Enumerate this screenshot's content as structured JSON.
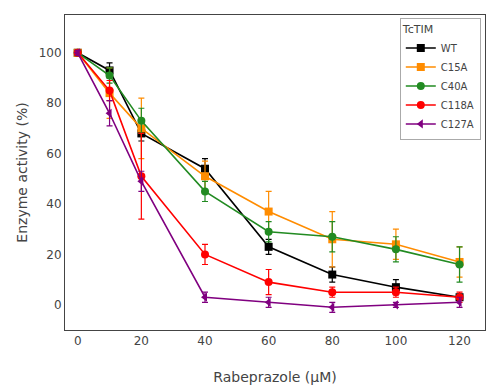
{
  "chart_data": {
    "type": "line",
    "x": [
      0,
      10,
      20,
      40,
      60,
      80,
      100,
      120
    ],
    "series": [
      {
        "name": "WT",
        "color": "#000000",
        "marker": "square",
        "line_style": "solid",
        "values": [
          100,
          93,
          68,
          54,
          23,
          12,
          7,
          3
        ],
        "errors": [
          1,
          3,
          3,
          4,
          3,
          3,
          3,
          1
        ]
      },
      {
        "name": "C15A",
        "color": "#FF8C00",
        "marker": "square",
        "line_style": "solid",
        "values": [
          100,
          84,
          70,
          51,
          37,
          26,
          24,
          17
        ],
        "errors": [
          1,
          10,
          12,
          6,
          8,
          11,
          6,
          6
        ]
      },
      {
        "name": "C40A",
        "color": "#228B22",
        "marker": "circle",
        "line_style": "solid",
        "values": [
          100,
          91,
          73,
          45,
          29,
          27,
          22,
          16
        ],
        "errors": [
          1,
          3,
          5,
          4,
          4,
          6,
          5,
          7
        ]
      },
      {
        "name": "C118A",
        "color": "#FF0000",
        "marker": "circle",
        "line_style": "solid",
        "values": [
          100,
          85,
          51,
          20,
          9,
          5,
          5,
          3
        ],
        "errors": [
          1,
          4,
          17,
          4,
          5,
          2,
          2,
          2
        ]
      },
      {
        "name": "C127A",
        "color": "#800080",
        "marker": "triangle-left",
        "line_style": "solid",
        "values": [
          100,
          76,
          49,
          3,
          1,
          -1,
          0,
          1
        ],
        "errors": [
          1,
          5,
          4,
          2,
          2,
          2,
          1,
          2
        ]
      }
    ],
    "xlabel": "Rabeprazole (μM)",
    "ylabel": "Enzyme activity (%)",
    "legend_title": "TcTIM",
    "xlim": [
      -4,
      128
    ],
    "ylim": [
      -10,
      115
    ],
    "xticks": [
      0,
      20,
      40,
      60,
      80,
      100,
      120
    ],
    "yticks": [
      0,
      20,
      40,
      60,
      80,
      100
    ],
    "grid": false,
    "legend": "upper right"
  }
}
